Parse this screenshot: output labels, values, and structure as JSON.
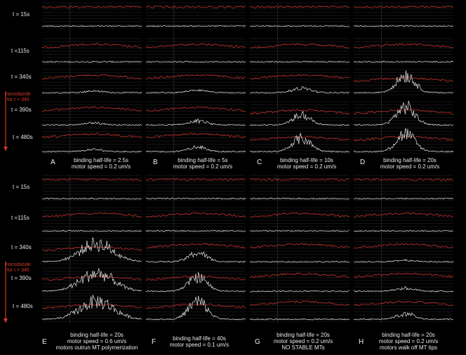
{
  "colors": {
    "background": "#000000",
    "red_trace": "#c0302a",
    "white_trace": "#e8e8e8",
    "grid": "#2a2a2a",
    "arrow": "#d23a2a"
  },
  "time_labels": [
    "t = 15s",
    "t =115s",
    "t = 340s",
    "t = 390s",
    "t = 480s"
  ],
  "nocodazole": {
    "line1": "nocodazole",
    "line2": "for t > 345"
  },
  "panels": [
    {
      "letter": "A",
      "line1": "binding half-life = 2.5s",
      "line2": "motor speed = 0.2 um/s",
      "line3": "",
      "peak": [
        0,
        0,
        0.1,
        0.12,
        0.12
      ]
    },
    {
      "letter": "B",
      "line1": "binding half-life = 5s",
      "line2": "motor speed = 0.2 um/s",
      "line3": "",
      "peak": [
        0,
        0,
        0.15,
        0.22,
        0.25
      ]
    },
    {
      "letter": "C",
      "line1": "binding half-life = 10s",
      "line2": "motor speed = 0.2 um/s",
      "line3": "",
      "peak": [
        0,
        0,
        0.25,
        0.55,
        0.75
      ]
    },
    {
      "letter": "D",
      "line1": "binding half-life = 20s",
      "line2": "motor speed = 0.2 um/s",
      "line3": "",
      "peak": [
        0,
        0,
        1.0,
        1.0,
        1.0
      ]
    },
    {
      "letter": "E",
      "line1": "binding half-life = 20s",
      "line2": "motor speed = 0.6 um/s",
      "line3": "motors outrun MT polymerization",
      "peak": [
        0,
        0,
        1.0,
        1.0,
        1.0
      ]
    },
    {
      "letter": "F",
      "line1": "binding half-life = 40s",
      "line2": "motor speed = 0.1 um/s",
      "line3": "",
      "peak": [
        0,
        0,
        0.5,
        0.8,
        1.0
      ]
    },
    {
      "letter": "G",
      "line1": "binding half-life = 20s",
      "line2": "motor speed = 0.2 um/s",
      "line3": "NO STABLE MTs",
      "peak": [
        0,
        0,
        0,
        0,
        0
      ]
    },
    {
      "letter": "H",
      "line1": "binding half-life = 20s",
      "line2": "motor speed = 0.2 um/s",
      "line3": "motors walk off MT tips",
      "peak": [
        0,
        0,
        0.08,
        0.18,
        0.3
      ]
    }
  ]
}
